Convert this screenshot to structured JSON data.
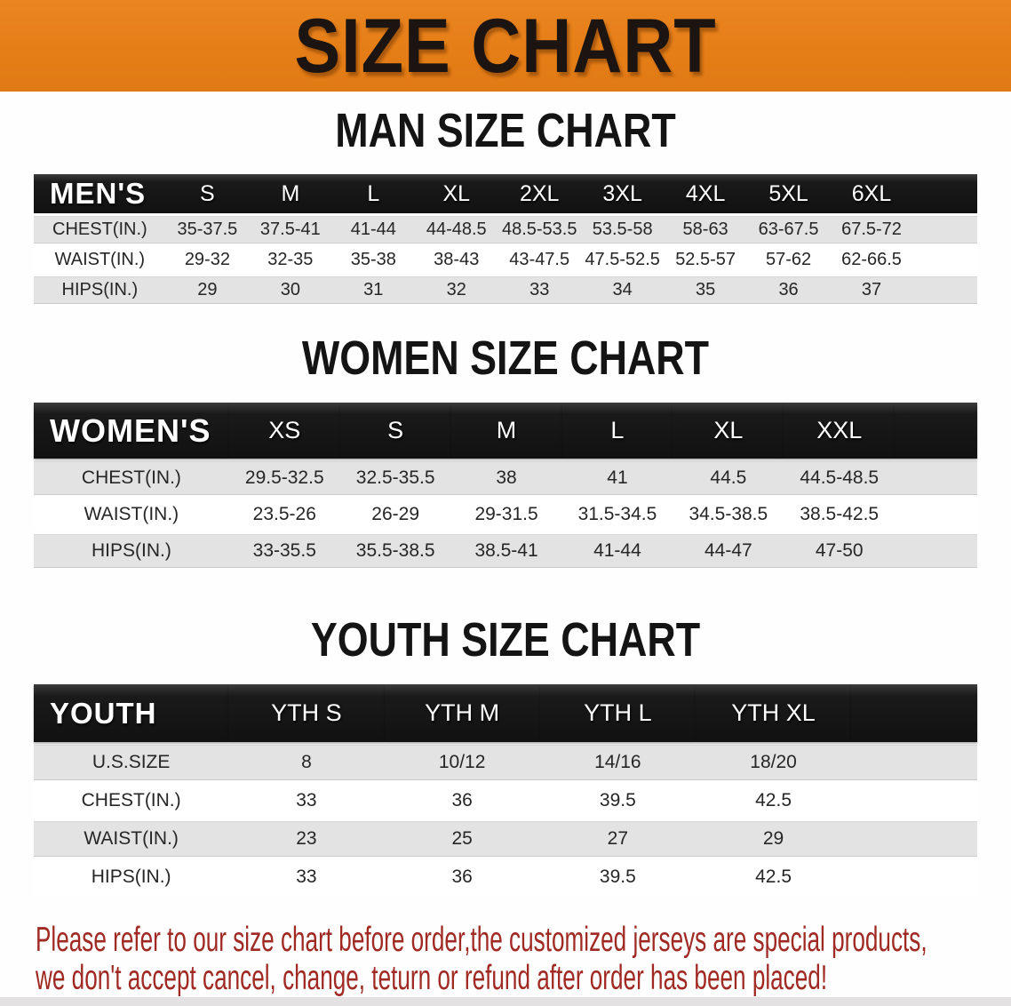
{
  "banner": {
    "title": "SIZE CHART"
  },
  "colors": {
    "banner_bg": "#E67E17",
    "banner_text": "#1B1410",
    "header_bar_bg": "#151515",
    "header_bar_text": "#FFFFFF",
    "row_stripe_gray": "#E3E3E3",
    "row_stripe_white": "#FFFFFF",
    "disclaimer_text": "#A02A23"
  },
  "sections": [
    {
      "heading": "MAN SIZE CHART",
      "table": {
        "header_label": "MEN'S",
        "sizes": [
          "S",
          "M",
          "L",
          "XL",
          "2XL",
          "3XL",
          "4XL",
          "5XL",
          "6XL"
        ],
        "rows": [
          {
            "label": "CHEST(IN.)",
            "values": [
              "35-37.5",
              "37.5-41",
              "41-44",
              "44-48.5",
              "48.5-53.5",
              "53.5-58",
              "58-63",
              "63-67.5",
              "67.5-72"
            ]
          },
          {
            "label": "WAIST(IN.)",
            "values": [
              "29-32",
              "32-35",
              "35-38",
              "38-43",
              "43-47.5",
              "47.5-52.5",
              "52.5-57",
              "57-62",
              "62-66.5"
            ]
          },
          {
            "label": "HIPS(IN.)",
            "values": [
              "29",
              "30",
              "31",
              "32",
              "33",
              "34",
              "35",
              "36",
              "37"
            ]
          }
        ]
      }
    },
    {
      "heading": "WOMEN SIZE CHART",
      "table": {
        "header_label": "WOMEN'S",
        "sizes": [
          "XS",
          "S",
          "M",
          "L",
          "XL",
          "XXL"
        ],
        "rows": [
          {
            "label": "CHEST(IN.)",
            "values": [
              "29.5-32.5",
              "32.5-35.5",
              "38",
              "41",
              "44.5",
              "44.5-48.5"
            ]
          },
          {
            "label": "WAIST(IN.)",
            "values": [
              "23.5-26",
              "26-29",
              "29-31.5",
              "31.5-34.5",
              "34.5-38.5",
              "38.5-42.5"
            ]
          },
          {
            "label": "HIPS(IN.)",
            "values": [
              "33-35.5",
              "35.5-38.5",
              "38.5-41",
              "41-44",
              "44-47",
              "47-50"
            ]
          }
        ]
      }
    },
    {
      "heading": "YOUTH SIZE CHART",
      "table": {
        "header_label": "YOUTH",
        "sizes": [
          "YTH S",
          "YTH M",
          "YTH L",
          "YTH XL"
        ],
        "rows": [
          {
            "label": "U.S.SIZE",
            "values": [
              "8",
              "10/12",
              "14/16",
              "18/20"
            ]
          },
          {
            "label": "CHEST(IN.)",
            "values": [
              "33",
              "36",
              "39.5",
              "42.5"
            ]
          },
          {
            "label": "WAIST(IN.)",
            "values": [
              "23",
              "25",
              "27",
              "29"
            ]
          },
          {
            "label": "HIPS(IN.)",
            "values": [
              "33",
              "36",
              "39.5",
              "42.5"
            ]
          }
        ]
      }
    }
  ],
  "disclaimer": {
    "line1": "Please refer to our size chart before order,the customized jerseys are special products,",
    "line2": "we don't accept cancel, change, teturn or refund after order has been placed!"
  }
}
